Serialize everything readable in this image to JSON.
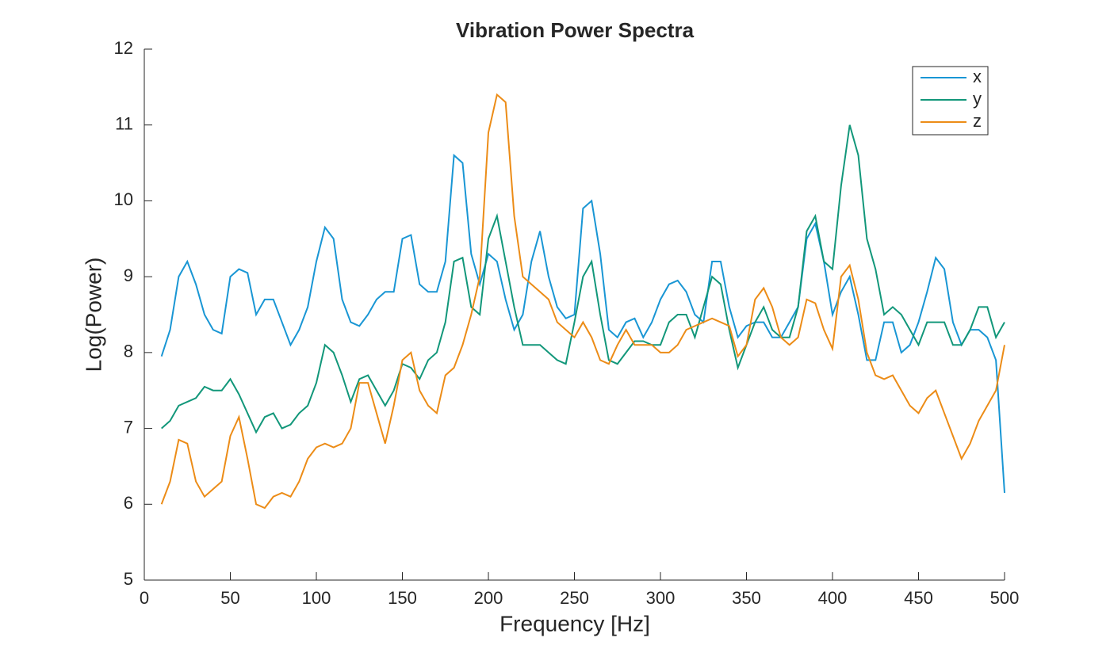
{
  "chart_data": {
    "type": "line",
    "title": "Vibration Power Spectra",
    "xlabel": "Frequency [Hz]",
    "ylabel": "Log(Power)",
    "x": [
      10,
      15,
      20,
      25,
      30,
      35,
      40,
      45,
      50,
      55,
      60,
      65,
      70,
      75,
      80,
      85,
      90,
      95,
      100,
      105,
      110,
      115,
      120,
      125,
      130,
      135,
      140,
      145,
      150,
      155,
      160,
      165,
      170,
      175,
      180,
      185,
      190,
      195,
      200,
      205,
      210,
      215,
      220,
      225,
      230,
      235,
      240,
      245,
      250,
      255,
      260,
      265,
      270,
      275,
      280,
      285,
      290,
      295,
      300,
      305,
      310,
      315,
      320,
      325,
      330,
      335,
      340,
      345,
      350,
      355,
      360,
      365,
      370,
      375,
      380,
      385,
      390,
      395,
      400,
      405,
      410,
      415,
      420,
      425,
      430,
      435,
      440,
      445,
      450,
      455,
      460,
      465,
      470,
      475,
      480,
      485,
      490,
      495,
      500
    ],
    "series": [
      {
        "name": "x",
        "color": "#1996d4",
        "values": [
          7.95,
          8.3,
          9.0,
          9.2,
          8.9,
          8.5,
          8.3,
          8.25,
          9.0,
          9.1,
          9.05,
          8.5,
          8.7,
          8.7,
          8.4,
          8.1,
          8.3,
          8.6,
          9.2,
          9.65,
          9.5,
          8.7,
          8.4,
          8.35,
          8.5,
          8.7,
          8.8,
          8.8,
          9.5,
          9.55,
          8.9,
          8.8,
          8.8,
          9.2,
          10.6,
          10.5,
          9.3,
          8.9,
          9.3,
          9.2,
          8.7,
          8.3,
          8.5,
          9.2,
          9.6,
          9.0,
          8.6,
          8.45,
          8.5,
          9.9,
          10.0,
          9.3,
          8.3,
          8.2,
          8.4,
          8.45,
          8.2,
          8.4,
          8.7,
          8.9,
          8.95,
          8.8,
          8.5,
          8.4,
          9.2,
          9.2,
          8.6,
          8.2,
          8.35,
          8.4,
          8.4,
          8.2,
          8.2,
          8.4,
          8.6,
          9.5,
          9.7,
          9.2,
          8.5,
          8.8,
          9.0,
          8.5,
          7.9,
          7.9,
          8.4,
          8.4,
          8.0,
          8.1,
          8.4,
          8.8,
          9.25,
          9.1,
          8.4,
          8.1,
          8.3,
          8.3,
          8.2,
          7.9,
          6.15
        ]
      },
      {
        "name": "y",
        "color": "#12977a",
        "values": [
          7.0,
          7.1,
          7.3,
          7.35,
          7.4,
          7.55,
          7.5,
          7.5,
          7.65,
          7.45,
          7.2,
          6.95,
          7.15,
          7.2,
          7.0,
          7.05,
          7.2,
          7.3,
          7.6,
          8.1,
          8.0,
          7.7,
          7.35,
          7.65,
          7.7,
          7.5,
          7.3,
          7.5,
          7.85,
          7.8,
          7.65,
          7.9,
          8.0,
          8.4,
          9.2,
          9.25,
          8.6,
          8.5,
          9.5,
          9.8,
          9.2,
          8.6,
          8.1,
          8.1,
          8.1,
          8.0,
          7.9,
          7.85,
          8.4,
          9.0,
          9.2,
          8.5,
          7.9,
          7.85,
          8.0,
          8.15,
          8.15,
          8.1,
          8.1,
          8.4,
          8.5,
          8.5,
          8.2,
          8.6,
          9.0,
          8.9,
          8.3,
          7.8,
          8.1,
          8.4,
          8.6,
          8.3,
          8.2,
          8.2,
          8.6,
          9.6,
          9.8,
          9.2,
          9.1,
          10.2,
          11.0,
          10.6,
          9.5,
          9.1,
          8.5,
          8.6,
          8.5,
          8.3,
          8.1,
          8.4,
          8.4,
          8.4,
          8.1,
          8.1,
          8.3,
          8.6,
          8.6,
          8.2,
          8.4
        ]
      },
      {
        "name": "z",
        "color": "#ec8c17",
        "values": [
          6.0,
          6.3,
          6.85,
          6.8,
          6.3,
          6.1,
          6.2,
          6.3,
          6.9,
          7.15,
          6.6,
          6.0,
          5.95,
          6.1,
          6.15,
          6.1,
          6.3,
          6.6,
          6.75,
          6.8,
          6.75,
          6.8,
          7.0,
          7.6,
          7.6,
          7.2,
          6.8,
          7.3,
          7.9,
          8.0,
          7.5,
          7.3,
          7.2,
          7.7,
          7.8,
          8.1,
          8.5,
          9.0,
          10.9,
          11.4,
          11.3,
          9.8,
          9.0,
          8.9,
          8.8,
          8.7,
          8.4,
          8.3,
          8.2,
          8.4,
          8.2,
          7.9,
          7.85,
          8.1,
          8.3,
          8.1,
          8.1,
          8.1,
          8.0,
          8.0,
          8.1,
          8.3,
          8.35,
          8.4,
          8.45,
          8.4,
          8.35,
          7.95,
          8.1,
          8.7,
          8.85,
          8.6,
          8.2,
          8.1,
          8.2,
          8.7,
          8.65,
          8.3,
          8.05,
          9.0,
          9.15,
          8.7,
          8.0,
          7.7,
          7.65,
          7.7,
          7.5,
          7.3,
          7.2,
          7.4,
          7.5,
          7.2,
          6.9,
          6.6,
          6.8,
          7.1,
          7.3,
          7.5,
          8.1
        ]
      }
    ],
    "xlim": [
      0,
      500
    ],
    "xticks": [
      0,
      50,
      100,
      150,
      200,
      250,
      300,
      350,
      400,
      450,
      500
    ],
    "ylim": [
      5,
      12
    ],
    "yticks": [
      5,
      6,
      7,
      8,
      9,
      10,
      11,
      12
    ],
    "legend": "upper right"
  }
}
